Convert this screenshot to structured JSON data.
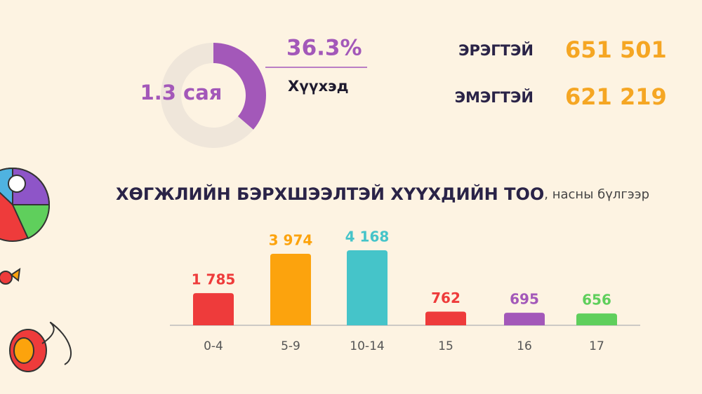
{
  "chart_data": [
    {
      "type": "donut",
      "center_label": "1.3 сая",
      "categories": [
        "Хүүхэд",
        null
      ],
      "values": [
        36.3,
        63.7
      ],
      "value_labels": [
        "36.3%",
        null
      ],
      "colors": [
        "#a358b9",
        "#efe6da"
      ]
    },
    {
      "type": "bar",
      "title": "ХӨГЖЛИЙН БЭРХШЭЭЛТЭЙ ХҮҮХДИЙН ТОО",
      "subtitle": ", насны бүлгээр",
      "categories": [
        "0-4",
        "5-9",
        "10-14",
        "15",
        "16",
        "17"
      ],
      "values": [
        1785,
        3974,
        4168,
        762,
        695,
        656
      ],
      "value_labels": [
        "1 785",
        "3 974",
        "4 168",
        "762",
        "695",
        "656"
      ],
      "colors": [
        "#ee3b3b",
        "#fca30d",
        "#45c4c9",
        "#ee3b3b",
        "#a358b9",
        "#5fcf5c"
      ]
    }
  ],
  "stats": [
    {
      "label": "ЭРЭГТЭЙ",
      "value": "651 501"
    },
    {
      "label": "ЭМЭГТЭЙ",
      "value": "621 219"
    }
  ]
}
